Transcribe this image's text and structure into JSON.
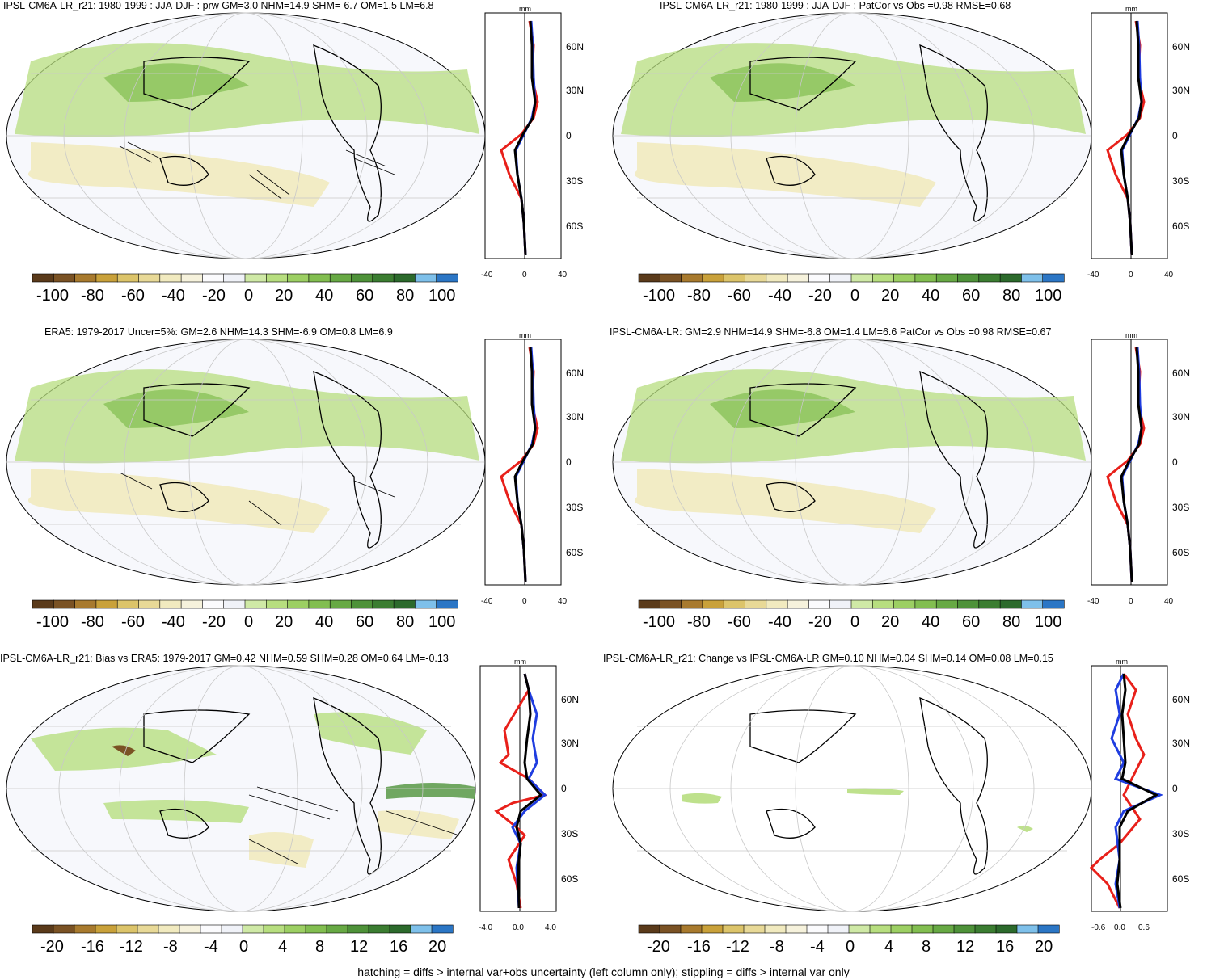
{
  "footer_note": "hatching = diffs > internal var+obs uncertainty (left column only); stippling = diffs > internal var only",
  "colorbar_large": {
    "labels": [
      "-100",
      "-80",
      "-60",
      "-40",
      "-20",
      "0",
      "20",
      "40",
      "60",
      "80",
      "100"
    ],
    "colors": [
      "#5a3a1a",
      "#7a5224",
      "#a87a2e",
      "#c9a13a",
      "#dcc46a",
      "#e8d997",
      "#f1eabf",
      "#f6f2dc",
      "#fbfbfd",
      "#f0f2f8",
      "#cfe9a6",
      "#b7de7f",
      "#9ccf63",
      "#82be50",
      "#67a944",
      "#4e9239",
      "#3b7d31",
      "#2c6a2c",
      "#7ec0ea",
      "#2b76c5"
    ]
  },
  "colorbar_small": {
    "labels": [
      "-20",
      "-16",
      "-12",
      "-8",
      "-4",
      "0",
      "4",
      "8",
      "12",
      "16",
      "20"
    ],
    "colors": [
      "#5a3a1a",
      "#7a5224",
      "#a87a2e",
      "#c9a13a",
      "#dcc46a",
      "#e8d997",
      "#f1eabf",
      "#f6f2dc",
      "#fbfbfd",
      "#f0f2f8",
      "#cfe9a6",
      "#b7de7f",
      "#9ccf63",
      "#82be50",
      "#67a944",
      "#4e9239",
      "#3b7d31",
      "#2c6a2c",
      "#7ec0ea",
      "#2b76c5"
    ]
  },
  "zonal_axis": {
    "unit": "mm",
    "lat_labels": [
      "60N",
      "30N",
      "0",
      "30S",
      "60S"
    ],
    "x_labels_large": [
      "-40",
      "0",
      "40"
    ],
    "x_labels_bias": [
      "-4.0",
      "0.0",
      "4.0"
    ],
    "x_labels_change": [
      "-0.6",
      "0.0",
      "0.6"
    ]
  },
  "series_colors": {
    "model": "#e8201a",
    "obs": "#1f3de0",
    "ens": "#000000"
  },
  "panels": [
    {
      "id": "p1",
      "title": "IPSL-CM6A-LR_r21: 1980-1999 : JJA-DJF : prw GM=3.0 NHM=14.9 SHM=-6.7 OM=1.5 LM=6.8",
      "scale": "large"
    },
    {
      "id": "p2",
      "title": "IPSL-CM6A-LR_r21: 1980-1999 : JJA-DJF : PatCor vs Obs =0.98 RMSE=0.68",
      "scale": "large"
    },
    {
      "id": "p3",
      "title": "ERA5: 1979-2017 Uncer=5%: GM=2.6 NHM=14.3 SHM=-6.9 OM=0.8 LM=6.9",
      "scale": "large"
    },
    {
      "id": "p4",
      "title": "IPSL-CM6A-LR: GM=2.9 NHM=14.9 SHM=-6.8 OM=1.4 LM=6.6 PatCor vs Obs =0.98 RMSE=0.67",
      "scale": "large"
    },
    {
      "id": "p5",
      "title": "IPSL-CM6A-LR_r21: Bias vs ERA5: 1979-2017 GM=0.42 NHM=0.59 SHM=0.28 OM=0.64 LM=-0.13",
      "scale": "bias"
    },
    {
      "id": "p6",
      "title": "IPSL-CM6A-LR_r21: Change vs IPSL-CM6A-LR GM=0.10 NHM=0.04 SHM=0.14 OM=0.08 LM=0.15",
      "scale": "change"
    }
  ]
}
